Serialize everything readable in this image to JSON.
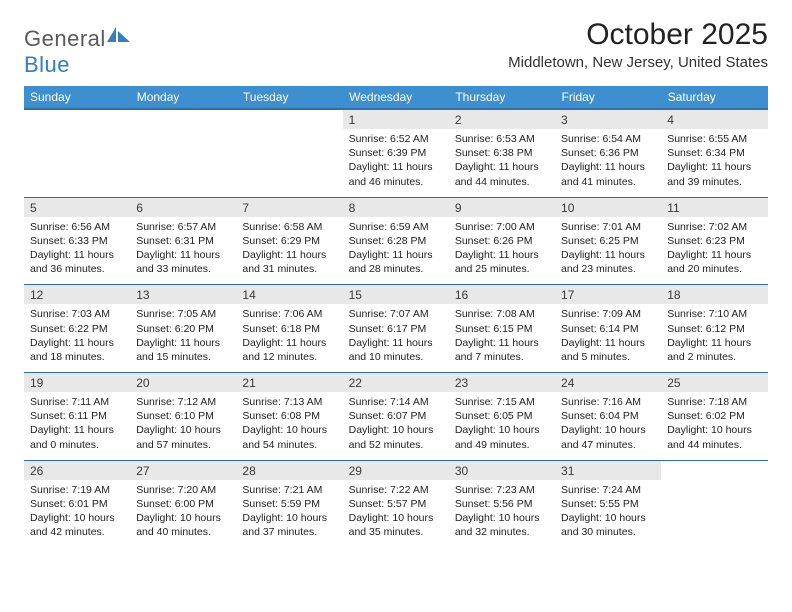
{
  "logo": {
    "word1": "General",
    "word2": "Blue"
  },
  "title": "October 2025",
  "location": "Middletown, New Jersey, United States",
  "headers": [
    "Sunday",
    "Monday",
    "Tuesday",
    "Wednesday",
    "Thursday",
    "Friday",
    "Saturday"
  ],
  "colors": {
    "header_bg": "#3e8fcf",
    "daynum_bg": "#e8e8e8",
    "row_border": "#2f6fa8",
    "logo_blue": "#2f7fc1",
    "logo_gray": "#5a5a5a"
  },
  "weeks": [
    {
      "nums": [
        "",
        "",
        "",
        "1",
        "2",
        "3",
        "4"
      ],
      "cells": [
        "",
        "",
        "",
        "Sunrise: 6:52 AM\nSunset: 6:39 PM\nDaylight: 11 hours and 46 minutes.",
        "Sunrise: 6:53 AM\nSunset: 6:38 PM\nDaylight: 11 hours and 44 minutes.",
        "Sunrise: 6:54 AM\nSunset: 6:36 PM\nDaylight: 11 hours and 41 minutes.",
        "Sunrise: 6:55 AM\nSunset: 6:34 PM\nDaylight: 11 hours and 39 minutes."
      ]
    },
    {
      "nums": [
        "5",
        "6",
        "7",
        "8",
        "9",
        "10",
        "11"
      ],
      "cells": [
        "Sunrise: 6:56 AM\nSunset: 6:33 PM\nDaylight: 11 hours and 36 minutes.",
        "Sunrise: 6:57 AM\nSunset: 6:31 PM\nDaylight: 11 hours and 33 minutes.",
        "Sunrise: 6:58 AM\nSunset: 6:29 PM\nDaylight: 11 hours and 31 minutes.",
        "Sunrise: 6:59 AM\nSunset: 6:28 PM\nDaylight: 11 hours and 28 minutes.",
        "Sunrise: 7:00 AM\nSunset: 6:26 PM\nDaylight: 11 hours and 25 minutes.",
        "Sunrise: 7:01 AM\nSunset: 6:25 PM\nDaylight: 11 hours and 23 minutes.",
        "Sunrise: 7:02 AM\nSunset: 6:23 PM\nDaylight: 11 hours and 20 minutes."
      ]
    },
    {
      "nums": [
        "12",
        "13",
        "14",
        "15",
        "16",
        "17",
        "18"
      ],
      "cells": [
        "Sunrise: 7:03 AM\nSunset: 6:22 PM\nDaylight: 11 hours and 18 minutes.",
        "Sunrise: 7:05 AM\nSunset: 6:20 PM\nDaylight: 11 hours and 15 minutes.",
        "Sunrise: 7:06 AM\nSunset: 6:18 PM\nDaylight: 11 hours and 12 minutes.",
        "Sunrise: 7:07 AM\nSunset: 6:17 PM\nDaylight: 11 hours and 10 minutes.",
        "Sunrise: 7:08 AM\nSunset: 6:15 PM\nDaylight: 11 hours and 7 minutes.",
        "Sunrise: 7:09 AM\nSunset: 6:14 PM\nDaylight: 11 hours and 5 minutes.",
        "Sunrise: 7:10 AM\nSunset: 6:12 PM\nDaylight: 11 hours and 2 minutes."
      ]
    },
    {
      "nums": [
        "19",
        "20",
        "21",
        "22",
        "23",
        "24",
        "25"
      ],
      "cells": [
        "Sunrise: 7:11 AM\nSunset: 6:11 PM\nDaylight: 11 hours and 0 minutes.",
        "Sunrise: 7:12 AM\nSunset: 6:10 PM\nDaylight: 10 hours and 57 minutes.",
        "Sunrise: 7:13 AM\nSunset: 6:08 PM\nDaylight: 10 hours and 54 minutes.",
        "Sunrise: 7:14 AM\nSunset: 6:07 PM\nDaylight: 10 hours and 52 minutes.",
        "Sunrise: 7:15 AM\nSunset: 6:05 PM\nDaylight: 10 hours and 49 minutes.",
        "Sunrise: 7:16 AM\nSunset: 6:04 PM\nDaylight: 10 hours and 47 minutes.",
        "Sunrise: 7:18 AM\nSunset: 6:02 PM\nDaylight: 10 hours and 44 minutes."
      ]
    },
    {
      "nums": [
        "26",
        "27",
        "28",
        "29",
        "30",
        "31",
        ""
      ],
      "cells": [
        "Sunrise: 7:19 AM\nSunset: 6:01 PM\nDaylight: 10 hours and 42 minutes.",
        "Sunrise: 7:20 AM\nSunset: 6:00 PM\nDaylight: 10 hours and 40 minutes.",
        "Sunrise: 7:21 AM\nSunset: 5:59 PM\nDaylight: 10 hours and 37 minutes.",
        "Sunrise: 7:22 AM\nSunset: 5:57 PM\nDaylight: 10 hours and 35 minutes.",
        "Sunrise: 7:23 AM\nSunset: 5:56 PM\nDaylight: 10 hours and 32 minutes.",
        "Sunrise: 7:24 AM\nSunset: 5:55 PM\nDaylight: 10 hours and 30 minutes.",
        ""
      ]
    }
  ]
}
